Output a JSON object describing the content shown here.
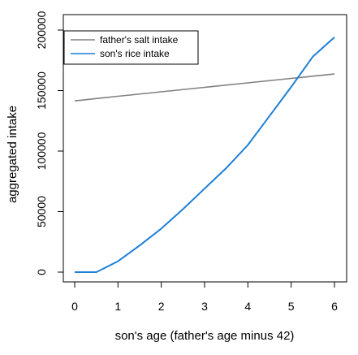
{
  "chart_data": {
    "type": "line",
    "xlabel": "son's age (father's age minus 42)",
    "ylabel": "aggregated intake",
    "xlim": [
      0,
      6
    ],
    "ylim": [
      0,
      200000
    ],
    "x_ticks": [
      "0",
      "1",
      "2",
      "3",
      "4",
      "5",
      "6"
    ],
    "y_ticks": [
      "0",
      "50000",
      "100000",
      "150000",
      "200000"
    ],
    "grid": false,
    "legend_position": "top-left",
    "series": [
      {
        "name": "father's salt intake",
        "color": "#808080",
        "x": [
          0,
          1,
          2,
          3,
          4,
          5,
          6
        ],
        "y": [
          141500,
          145300,
          149000,
          152700,
          156400,
          160100,
          163700
        ]
      },
      {
        "name": "son's rice intake",
        "color": "#1e7fd6",
        "x": [
          0,
          0.5,
          1,
          1.5,
          2,
          2.5,
          3,
          3.5,
          4,
          4.5,
          5,
          5.5,
          6
        ],
        "y": [
          0,
          0,
          9000,
          22000,
          36000,
          52000,
          69000,
          86000,
          105000,
          129000,
          153000,
          178000,
          194000
        ]
      }
    ]
  }
}
